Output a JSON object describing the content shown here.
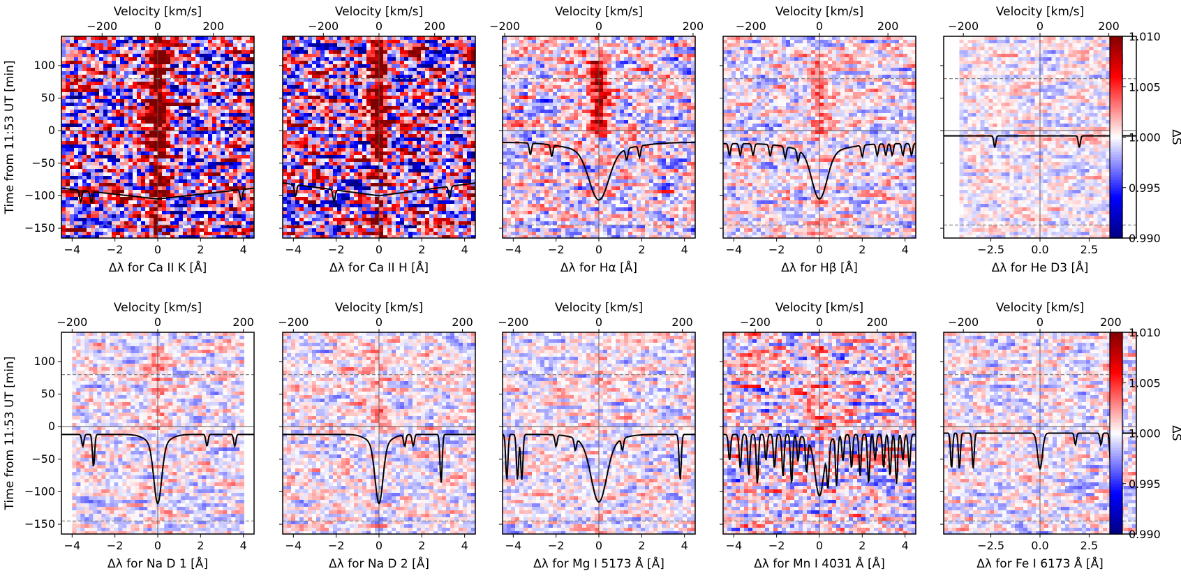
{
  "figure": {
    "colorbar": {
      "label": "ΔS",
      "vmin": 0.99,
      "vmax": 1.01,
      "ticks": [
        "1.010",
        "1.005",
        "1.000",
        "0.995",
        "0.990"
      ],
      "cmap": "seismic"
    },
    "y_axis": {
      "label": "Time from 11:53 UT [min]",
      "ylim": [
        -165,
        145
      ],
      "ticks": [
        100,
        50,
        0,
        -50,
        -100,
        -150
      ]
    },
    "reference_lines": {
      "solid_y": 0,
      "dashed_y": [
        80,
        -145
      ]
    },
    "top_axis_label": "Velocity [km/s]"
  },
  "chart_data": [
    {
      "type": "heatmap",
      "line": "Ca II K",
      "xlabel": "Δλ for Ca II K [Å]",
      "top_label": "Velocity [km/s]",
      "xlim": [
        -4.5,
        4.5
      ],
      "xticks": [
        "-4",
        "-2",
        "0",
        "2",
        "4"
      ],
      "vticks": [
        "-200",
        "0",
        "200"
      ],
      "vtick_pos": [
        -2.6,
        0,
        2.6
      ],
      "data_extent": [
        -4.5,
        4.5
      ],
      "intensity": 1.0,
      "core_strength": 1.0,
      "profile": {
        "continuum_y": -88,
        "depth": 17,
        "width": 0.0,
        "v_shape": true,
        "weak_lines": [
          -3.6,
          -3.1,
          3.9
        ]
      }
    },
    {
      "type": "heatmap",
      "line": "Ca II H",
      "xlabel": "Δλ for Ca II H [Å]",
      "top_label": "Velocity [km/s]",
      "xlim": [
        -4.5,
        4.5
      ],
      "xticks": [
        "-4",
        "-2",
        "0",
        "2",
        "4"
      ],
      "vticks": [
        "-200",
        "0",
        "200"
      ],
      "vtick_pos": [
        -2.6,
        0,
        2.6
      ],
      "data_extent": [
        -4.5,
        4.5
      ],
      "intensity": 1.0,
      "core_strength": 1.0,
      "profile": {
        "continuum_y": -80,
        "depth": 20,
        "width": 0.0,
        "v_shape": true,
        "weak_lines": [
          -3.9,
          -2.1,
          3.3
        ]
      }
    },
    {
      "type": "heatmap",
      "line": "Hα",
      "xlabel": "Δλ for Hα [Å]",
      "top_label": "Velocity [km/s]",
      "xlim": [
        -4.5,
        4.5
      ],
      "xticks": [
        "-4",
        "-2",
        "0",
        "2",
        "4"
      ],
      "vticks": [
        "-200",
        "0",
        "200"
      ],
      "vtick_pos": [
        -4.4,
        0,
        4.4
      ],
      "data_extent": [
        -4.5,
        4.5
      ],
      "intensity": 0.45,
      "core_strength": 0.8,
      "profile": {
        "continuum_y": -18,
        "depth": 75,
        "width": 0.45,
        "wings": 0.9,
        "weak_lines": [
          -3.2,
          -2.2,
          1.3,
          1.9
        ]
      }
    },
    {
      "type": "heatmap",
      "line": "Hβ",
      "xlabel": "Δλ for Hβ [Å]",
      "top_label": "Velocity [km/s]",
      "xlim": [
        -4.5,
        4.5
      ],
      "xticks": [
        "-4",
        "-2",
        "0",
        "2",
        "4"
      ],
      "vticks": [
        "-200",
        "0",
        "200"
      ],
      "vtick_pos": [
        -3.2,
        0,
        3.2
      ],
      "data_extent": [
        -4.5,
        4.5
      ],
      "intensity": 0.35,
      "core_strength": 0.45,
      "profile": {
        "continuum_y": -20,
        "depth": 72,
        "width": 0.35,
        "wings": 0.7,
        "weak_lines": [
          -4.2,
          -3.7,
          -3.1,
          -2.3,
          -1.6,
          -1.0,
          2.0,
          2.7,
          3.1,
          3.4,
          3.9,
          4.3
        ]
      }
    },
    {
      "type": "heatmap",
      "line": "He D3",
      "xlabel": "Δλ for He D3 [Å]",
      "top_label": "Velocity [km/s]",
      "xlim": [
        -4.9,
        4.9
      ],
      "xticks": [
        "-2.5",
        "0.0",
        "2.5"
      ],
      "xtick_pos": [
        -2.5,
        0,
        2.5
      ],
      "vticks": [
        "-200",
        "0",
        "200"
      ],
      "vtick_pos": [
        -3.9,
        0,
        3.5
      ],
      "data_extent": [
        -4.1,
        4.1
      ],
      "intensity": 0.25,
      "core_strength": 0.0,
      "profile": {
        "continuum_y": -8,
        "depth": 0,
        "width": 0.0,
        "weak_lines": [
          -2.3,
          2.0,
          4.0
        ]
      }
    },
    {
      "type": "heatmap",
      "line": "Na D 1",
      "xlabel": "Δλ for Na D 1 [Å]",
      "top_label": "Velocity [km/s]",
      "xlim": [
        -4.5,
        4.5
      ],
      "xticks": [
        "-4",
        "-2",
        "0",
        "2",
        "4"
      ],
      "vticks": [
        "-200",
        "0",
        "200"
      ],
      "vtick_pos": [
        -4.0,
        0,
        4.0
      ],
      "data_extent": [
        -4.0,
        4.0
      ],
      "intensity": 0.3,
      "core_strength": 0.3,
      "profile": {
        "continuum_y": -12,
        "depth": 90,
        "width": 0.18,
        "wings": 0.3,
        "weak_lines": [
          -3.5,
          -3.0,
          2.3,
          3.6
        ]
      }
    },
    {
      "type": "heatmap",
      "line": "Na D 2",
      "xlabel": "Δλ for Na D 2 [Å]",
      "top_label": "Velocity [km/s]",
      "xlim": [
        -4.5,
        4.5
      ],
      "xticks": [
        "-4",
        "-2",
        "0",
        "2",
        "4"
      ],
      "vticks": [
        "-200",
        "0",
        "200"
      ],
      "vtick_pos": [
        -4.0,
        0,
        3.9
      ],
      "data_extent": [
        -4.5,
        4.5
      ],
      "intensity": 0.3,
      "core_strength": 0.3,
      "profile": {
        "continuum_y": -12,
        "depth": 90,
        "width": 0.18,
        "wings": 0.3,
        "weak_lines": [
          1.2,
          1.6,
          2.9
        ]
      }
    },
    {
      "type": "heatmap",
      "line": "Mg I 5173 Å",
      "xlabel": "Δλ for Mg I 5173 Å [Å]",
      "top_label": "Velocity [km/s]",
      "xlim": [
        -4.5,
        4.5
      ],
      "xticks": [
        "-4",
        "-2",
        "0",
        "2",
        "4"
      ],
      "vticks": [
        "-200",
        "0",
        "200"
      ],
      "vtick_pos": [
        -4.0,
        0,
        3.9
      ],
      "data_extent": [
        -4.5,
        4.5
      ],
      "intensity": 0.3,
      "core_strength": 0.1,
      "profile": {
        "continuum_y": -12,
        "depth": 88,
        "width": 0.35,
        "wings": 0.5,
        "weak_lines": [
          -4.3,
          -3.8,
          -3.6,
          -2.0,
          -1.1,
          1.1,
          3.8
        ]
      }
    },
    {
      "type": "heatmap",
      "line": "Mn I 4031 Å",
      "xlabel": "Δλ for Mn I 4031 Å [Å]",
      "top_label": "Velocity [km/s]",
      "xlim": [
        -4.5,
        4.5
      ],
      "xticks": [
        "-4",
        "-2",
        "0",
        "2",
        "4"
      ],
      "vticks": [
        "-200",
        "0",
        "200"
      ],
      "vtick_pos": [
        -3.0,
        0,
        2.7
      ],
      "data_extent": [
        -4.5,
        4.5
      ],
      "intensity": 0.45,
      "core_strength": 0.4,
      "profile": {
        "continuum_y": -12,
        "depth": 80,
        "width": 0.2,
        "wings": 0.3,
        "weak_lines": [
          -4.2,
          -3.7,
          -3.3,
          -2.9,
          -2.5,
          -2.1,
          -1.7,
          -1.3,
          -1.0,
          -0.6,
          0.4,
          0.8,
          1.1,
          1.5,
          1.9,
          2.3,
          2.6,
          3.0,
          3.3,
          3.6,
          3.9,
          4.2
        ]
      }
    },
    {
      "type": "heatmap",
      "line": "Fe I 6173 Å",
      "xlabel": "Δλ for Fe I 6173 Å [Å]",
      "top_label": "Velocity [km/s]",
      "xlim": [
        -4.9,
        4.9
      ],
      "xticks": [
        "-2.5",
        "0.0",
        "2.5"
      ],
      "xtick_pos": [
        -2.5,
        0,
        2.5
      ],
      "vticks": [
        "-200",
        "0",
        "200"
      ],
      "vtick_pos": [
        -3.9,
        0,
        3.6
      ],
      "data_extent": [
        -4.9,
        4.9
      ],
      "intensity": 0.3,
      "core_strength": 0.0,
      "profile": {
        "continuum_y": -10,
        "depth": 55,
        "width": 0.12,
        "wings": 0.0,
        "weak_lines": [
          -4.5,
          -4.1,
          -3.4,
          1.8,
          3.1,
          3.6
        ]
      }
    }
  ]
}
